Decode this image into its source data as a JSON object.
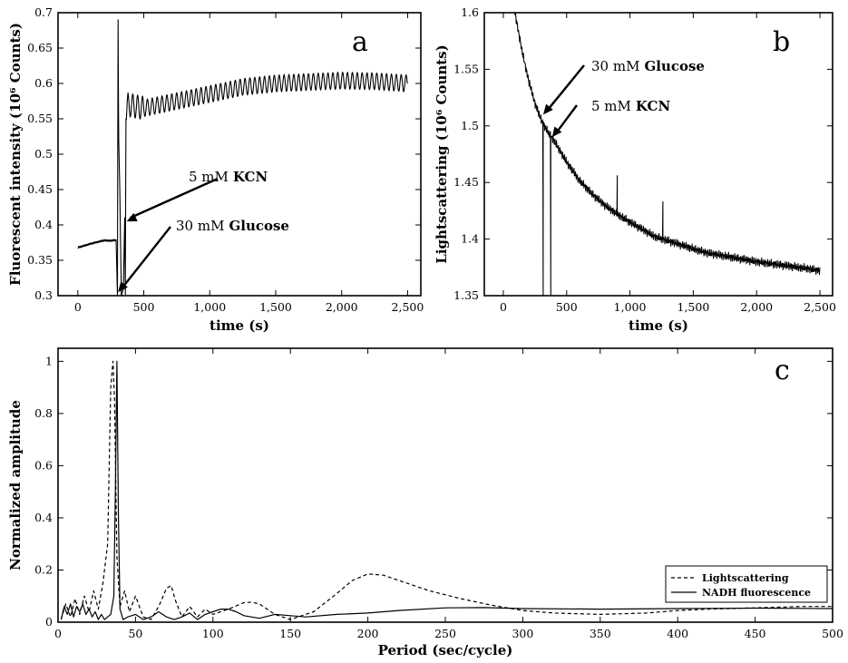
{
  "chart_data": [
    {
      "id": "a",
      "type": "line",
      "panel_label": "a",
      "xlabel": "time (s)",
      "ylabel": "Fluorescent intensity (10⁶ Counts)",
      "xlim": [
        -150,
        2600
      ],
      "ylim": [
        0.3,
        0.7
      ],
      "xticks": [
        0,
        500,
        1000,
        1500,
        2000,
        2500
      ],
      "xtick_labels": [
        "0",
        "500",
        "1,000",
        "1,500",
        "2,000",
        "2,500"
      ],
      "yticks": [
        0.3,
        0.35,
        0.4,
        0.45,
        0.5,
        0.55,
        0.6,
        0.65,
        0.7
      ],
      "ytick_labels": [
        "0.3",
        "0.35",
        "0.4",
        "0.45",
        "0.5",
        "0.55",
        "0.6",
        "0.65",
        "0.7"
      ],
      "series": [
        {
          "style": "solid",
          "x": [
            0,
            100,
            200,
            290,
            300,
            305,
            310,
            318,
            330,
            345,
            355,
            360,
            365,
            380,
            500,
            750,
            1000,
            1250,
            1500,
            1750,
            2000,
            2250,
            2500
          ],
          "y": [
            0.368,
            0.374,
            0.379,
            0.379,
            0.3,
            0.69,
            0.52,
            0.45,
            0.3,
            0.31,
            0.41,
            0.3,
            0.55,
            0.57,
            0.565,
            0.575,
            0.585,
            0.595,
            0.6,
            0.602,
            0.604,
            0.603,
            0.6
          ],
          "oscillation_amplitude": 0.012,
          "oscillation_period_s": 37
        }
      ],
      "annotations": [
        {
          "text_value": "5 mM",
          "text_bold": "KCN",
          "points_to": [
            370,
            0.405
          ]
        },
        {
          "text_value": "30 mM",
          "text_bold": "Glucose",
          "points_to": [
            305,
            0.305
          ]
        }
      ]
    },
    {
      "id": "b",
      "type": "line",
      "panel_label": "b",
      "xlabel": "time (s)",
      "ylabel": "Lightscattering (10⁶ Counts)",
      "xlim": [
        -150,
        2600
      ],
      "ylim": [
        1.35,
        1.6
      ],
      "xticks": [
        0,
        500,
        1000,
        1500,
        2000,
        2500
      ],
      "xtick_labels": [
        "0",
        "500",
        "1,000",
        "1,500",
        "2,000",
        "2,500"
      ],
      "yticks": [
        1.35,
        1.4,
        1.45,
        1.5,
        1.55,
        1.6
      ],
      "ytick_labels": [
        "1.35",
        "1.4",
        "1.45",
        "1.5",
        "1.55",
        "1.6"
      ],
      "series": [
        {
          "style": "solid",
          "x": [
            0,
            50,
            100,
            150,
            200,
            250,
            300,
            350,
            400,
            500,
            600,
            700,
            800,
            900,
            1000,
            1200,
            1400,
            1600,
            1800,
            2000,
            2200,
            2400,
            2500
          ],
          "y": [
            1.66,
            1.625,
            1.595,
            1.565,
            1.54,
            1.52,
            1.505,
            1.495,
            1.487,
            1.468,
            1.452,
            1.44,
            1.43,
            1.422,
            1.415,
            1.402,
            1.395,
            1.388,
            1.384,
            1.38,
            1.377,
            1.374,
            1.372
          ],
          "noise_amplitude": 0.004,
          "spikes": [
            {
              "x": 315,
              "y": 1.35
            },
            {
              "x": 375,
              "y": 1.35
            },
            {
              "x": 900,
              "y": 1.456
            },
            {
              "x": 1260,
              "y": 1.433
            }
          ]
        }
      ],
      "annotations": [
        {
          "text_value": "30 mM",
          "text_bold": "Glucose",
          "points_to": [
            315,
            1.51
          ]
        },
        {
          "text_value": "5 mM",
          "text_bold": "KCN",
          "points_to": [
            385,
            1.49
          ]
        }
      ]
    },
    {
      "id": "c",
      "type": "line",
      "panel_label": "c",
      "xlabel": "Period (sec/cycle)",
      "ylabel": "Normalized amplitude",
      "xlim": [
        0,
        500
      ],
      "ylim": [
        0,
        1.05
      ],
      "xticks": [
        0,
        50,
        100,
        150,
        200,
        250,
        300,
        350,
        400,
        450,
        500
      ],
      "xtick_labels": [
        "0",
        "50",
        "100",
        "150",
        "200",
        "250",
        "300",
        "350",
        "400",
        "450",
        "500"
      ],
      "yticks": [
        0,
        0.2,
        0.4,
        0.6,
        0.8,
        1
      ],
      "ytick_labels": [
        "0",
        "0.2",
        "0.4",
        "0.6",
        "0.8",
        "1"
      ],
      "legend": {
        "position": "bottom-right"
      },
      "series": [
        {
          "name": "Lightscattering",
          "style": "dashed",
          "x": [
            2,
            5,
            8,
            11,
            14,
            17,
            20,
            23,
            26,
            29,
            32,
            34,
            35.5,
            36.5,
            38,
            40,
            43,
            46,
            50,
            55,
            60,
            65,
            70,
            73,
            76,
            80,
            85,
            90,
            95,
            100,
            110,
            120,
            125,
            130,
            140,
            150,
            165,
            180,
            190,
            200,
            210,
            220,
            240,
            260,
            280,
            300,
            320,
            350,
            380,
            400,
            420,
            450,
            480,
            500
          ],
          "y": [
            0.01,
            0.07,
            0.02,
            0.09,
            0.03,
            0.1,
            0.04,
            0.12,
            0.05,
            0.15,
            0.3,
            0.9,
            1.0,
            0.85,
            0.25,
            0.06,
            0.12,
            0.04,
            0.1,
            0.02,
            0.01,
            0.06,
            0.13,
            0.14,
            0.08,
            0.02,
            0.06,
            0.02,
            0.05,
            0.03,
            0.05,
            0.075,
            0.077,
            0.07,
            0.03,
            0.01,
            0.04,
            0.11,
            0.16,
            0.185,
            0.18,
            0.16,
            0.12,
            0.09,
            0.065,
            0.045,
            0.035,
            0.03,
            0.035,
            0.045,
            0.05,
            0.055,
            0.06,
            0.06
          ]
        },
        {
          "name": "NADH fluorescence",
          "style": "solid",
          "x": [
            2,
            4,
            6,
            8,
            10,
            12,
            14,
            16,
            18,
            20,
            22,
            24,
            26,
            28,
            30,
            32,
            34,
            36,
            37,
            38,
            39,
            40,
            42,
            45,
            50,
            55,
            60,
            65,
            70,
            75,
            80,
            85,
            90,
            95,
            100,
            105,
            110,
            115,
            120,
            130,
            140,
            150,
            160,
            180,
            200,
            220,
            250,
            275,
            300,
            350,
            400,
            450,
            500
          ],
          "y": [
            0.01,
            0.06,
            0.03,
            0.07,
            0.02,
            0.06,
            0.04,
            0.07,
            0.03,
            0.05,
            0.02,
            0.04,
            0.01,
            0.03,
            0.01,
            0.02,
            0.03,
            0.1,
            0.5,
            1.0,
            0.4,
            0.05,
            0.01,
            0.02,
            0.03,
            0.01,
            0.02,
            0.04,
            0.02,
            0.01,
            0.02,
            0.035,
            0.01,
            0.03,
            0.04,
            0.05,
            0.05,
            0.04,
            0.025,
            0.015,
            0.03,
            0.025,
            0.02,
            0.03,
            0.035,
            0.045,
            0.055,
            0.056,
            0.052,
            0.05,
            0.052,
            0.054,
            0.052
          ]
        }
      ]
    }
  ]
}
